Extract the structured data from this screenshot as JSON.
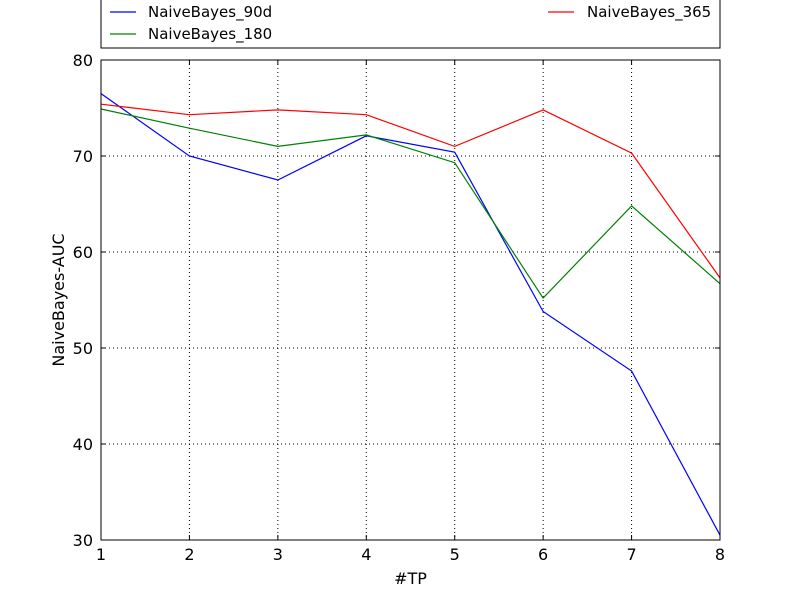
{
  "chart_data": {
    "type": "line",
    "title": "",
    "xlabel": "#TP",
    "ylabel": "NaiveBayes-AUC",
    "x": [
      1,
      2,
      3,
      4,
      5,
      6,
      7,
      8
    ],
    "xlim": [
      1,
      8
    ],
    "ylim": [
      30,
      80
    ],
    "xticks": [
      1,
      2,
      3,
      4,
      5,
      6,
      7,
      8
    ],
    "yticks": [
      30,
      40,
      50,
      60,
      70,
      80
    ],
    "grid": true,
    "legend": "top",
    "series": [
      {
        "name": "NaiveBayes_90d",
        "color": "#0000ff",
        "values": [
          76.5,
          70.0,
          67.5,
          72.1,
          70.4,
          53.8,
          47.6,
          30.5
        ]
      },
      {
        "name": "NaiveBayes_180",
        "color": "#008000",
        "values": [
          74.9,
          72.9,
          71.0,
          72.2,
          69.3,
          55.2,
          64.8,
          56.7
        ]
      },
      {
        "name": "NaiveBayes_365",
        "color": "#ff0000",
        "values": [
          75.4,
          74.3,
          74.8,
          74.3,
          71.0,
          74.8,
          70.3,
          57.3
        ]
      }
    ]
  }
}
